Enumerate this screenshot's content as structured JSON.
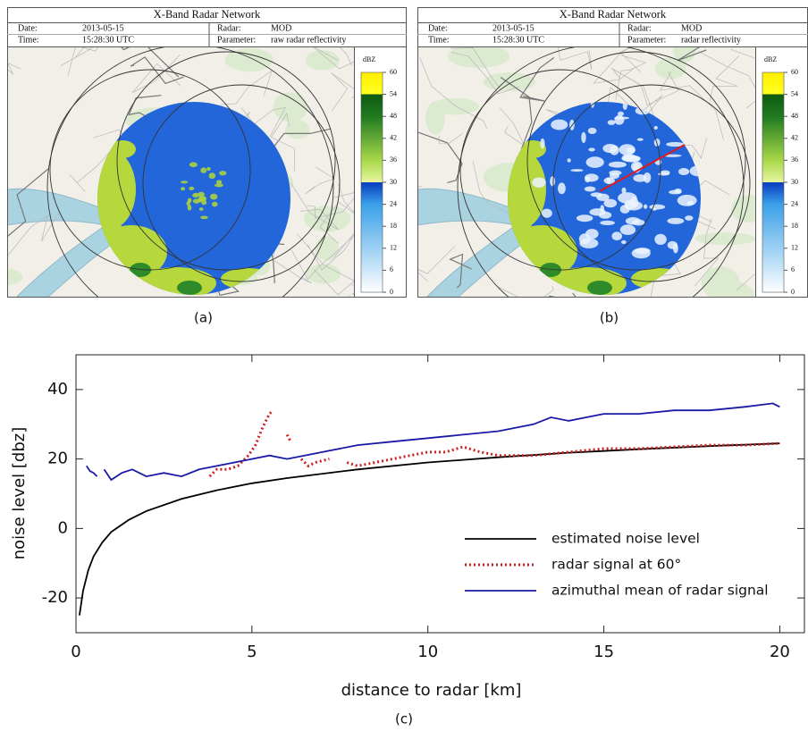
{
  "panels": [
    {
      "title": "X-Band Radar Network",
      "date_label": "Date:",
      "date": "2013-05-15",
      "time_label": "Time:",
      "time": "15:28:30 UTC",
      "radar_label": "Radar:",
      "radar": "MOD",
      "parameter_label": "Parameter:",
      "parameter": "raw radar reflectivity",
      "colorbar": {
        "label": "dBZ",
        "ticks": [
          0,
          6,
          12,
          18,
          24,
          30,
          36,
          42,
          48,
          54,
          60
        ]
      },
      "caption": "(a)"
    },
    {
      "title": "X-Band Radar Network",
      "date_label": "Date:",
      "date": "2013-05-15",
      "time_label": "Time:",
      "time": "15:28:30 UTC",
      "radar_label": "Radar:",
      "radar": "MOD",
      "parameter_label": "Parameter:",
      "parameter": "radar reflectivity",
      "colorbar": {
        "label": "dBZ",
        "ticks": [
          0,
          6,
          12,
          18,
          24,
          30,
          36,
          42,
          48,
          54,
          60
        ]
      },
      "caption": "(b)"
    }
  ],
  "chart_data": {
    "type": "line",
    "xlabel": "distance to radar [km]",
    "ylabel": "noise level [dbz]",
    "caption": "(c)",
    "xlim": [
      0,
      20.7
    ],
    "ylim": [
      -30,
      50
    ],
    "xticks": [
      0,
      5,
      10,
      15,
      20
    ],
    "yticks": [
      -20,
      0,
      20,
      40
    ],
    "grid": false,
    "legend": "lower right",
    "series": [
      {
        "name": "estimated noise level",
        "color": "#000000",
        "style": "solid",
        "x": [
          0.1,
          0.2,
          0.35,
          0.5,
          0.75,
          1,
          1.5,
          2,
          3,
          4,
          5,
          6,
          8,
          10,
          12,
          14,
          16,
          18,
          20
        ],
        "values": [
          -25,
          -18,
          -12,
          -8,
          -4,
          -1,
          2.5,
          5,
          8.5,
          11,
          13,
          14.5,
          17,
          19,
          20.5,
          21.8,
          22.8,
          23.7,
          24.5
        ]
      },
      {
        "name": "radar signal at 60°",
        "color": "#cc1f1f",
        "style": "dotted",
        "x": [
          3.8,
          4,
          4.3,
          4.6,
          4.9,
          5.1,
          5.3,
          5.5,
          5.6,
          5.8,
          6.0,
          6.1,
          6.25,
          6.4,
          6.6,
          6.8,
          7.2,
          7.4,
          7.7,
          8,
          8.5,
          9,
          9.5,
          10,
          10.5,
          11,
          11.5,
          12,
          13,
          14,
          15,
          16,
          17,
          18,
          19,
          20
        ],
        "values": [
          15,
          17,
          17,
          18,
          21,
          24,
          29,
          33,
          34,
          null,
          27,
          25,
          null,
          20,
          18,
          19,
          20,
          null,
          19,
          18,
          19,
          20,
          21,
          22,
          22,
          23.5,
          22,
          21,
          21,
          22,
          23,
          23,
          23.5,
          24,
          24,
          24.5
        ]
      },
      {
        "name": "azimuthal mean of radar signal",
        "color": "#1a1aa8",
        "style": "solid",
        "x": [
          0.3,
          0.4,
          0.5,
          0.6,
          0.7,
          0.8,
          1,
          1.3,
          1.6,
          2,
          2.5,
          3,
          3.5,
          4,
          4.5,
          5,
          5.5,
          6,
          7,
          8,
          9,
          10,
          11,
          12,
          13,
          13.5,
          14,
          15,
          16,
          17,
          18,
          19,
          19.8,
          20
        ],
        "values": [
          18,
          16.5,
          16,
          15,
          null,
          17,
          14,
          16,
          17,
          15,
          16,
          15,
          17,
          18,
          19,
          20,
          21,
          20,
          22,
          24,
          25,
          26,
          27,
          28,
          30,
          32,
          31,
          33,
          33,
          34,
          34,
          35,
          36,
          35
        ]
      }
    ]
  }
}
